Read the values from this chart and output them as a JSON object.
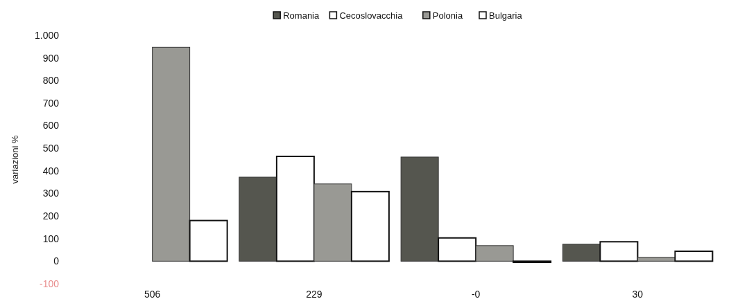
{
  "chart_data": {
    "type": "bar",
    "ylabel": "variazioni %",
    "categories": [
      "506",
      "229",
      "-0",
      "30"
    ],
    "series": [
      {
        "name": "Romania",
        "color": "#55564f",
        "values": [
          null,
          372,
          461,
          75
        ]
      },
      {
        "name": "Cecoslovacchia",
        "color": "#ffffff",
        "values": [
          null,
          464,
          103,
          86
        ]
      },
      {
        "name": "Polonia",
        "color": "#999994",
        "values": [
          947,
          342,
          69,
          17
        ]
      },
      {
        "name": "Bulgaria",
        "color": "#ffffff",
        "values": [
          180,
          308,
          -5,
          44
        ]
      }
    ],
    "ylim": [
      -100,
      1000
    ],
    "yticks": [
      -100,
      0,
      100,
      200,
      300,
      400,
      500,
      600,
      700,
      800,
      900,
      {
        "value": 1000,
        "label": "1.000"
      }
    ],
    "grid": false,
    "legend": "top"
  }
}
